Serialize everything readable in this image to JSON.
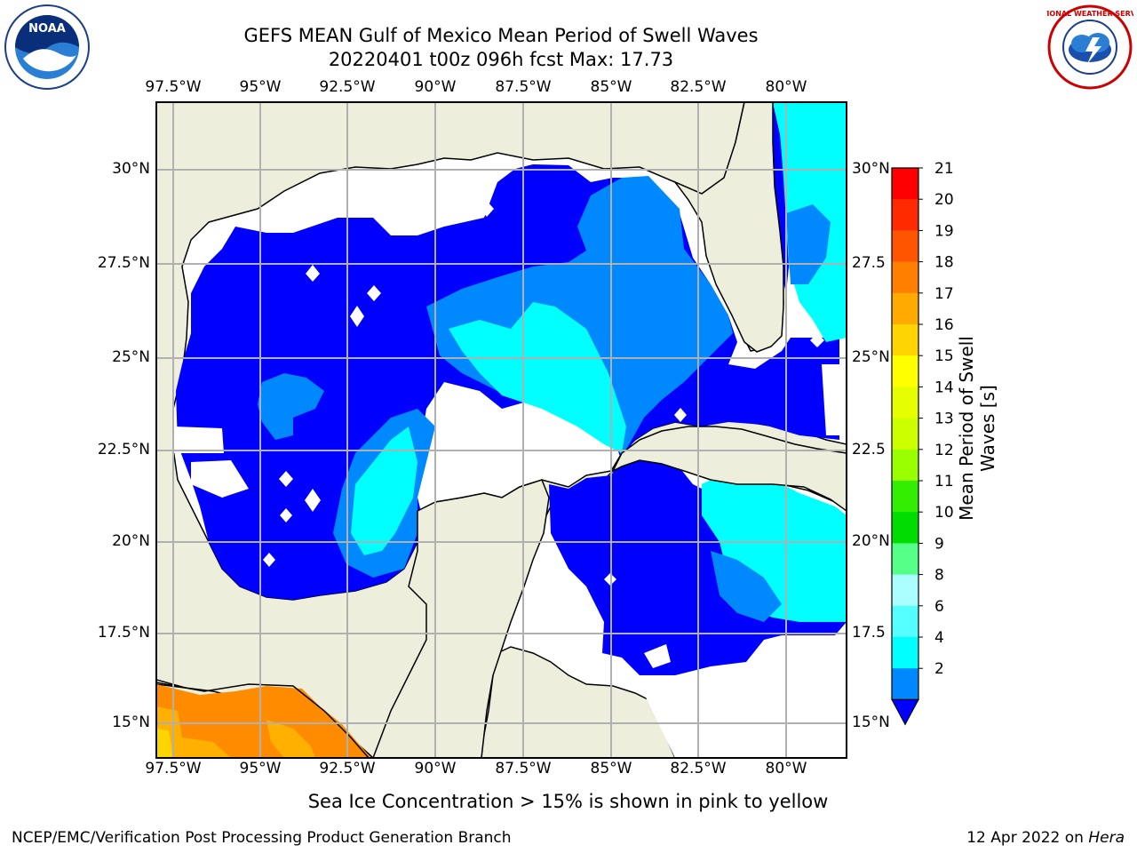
{
  "header": {
    "title_line1": "GEFS MEAN Gulf of Mexico Mean Period of Swell Waves",
    "title_line2": "20220401 t00z 096h fcst   Max: 17.73"
  },
  "logos": {
    "left": {
      "name": "NOAA",
      "ring_text": "NATIONAL OCEANIC AND ATMOSPHERIC ADMINISTRATION · U.S. DEPARTMENT OF COMMERCE"
    },
    "right": {
      "name": "NATIONAL WEATHER SERVICE"
    }
  },
  "map": {
    "lon_ticks": [
      "97.5°W",
      "95°W",
      "92.5°W",
      "90°W",
      "87.5°W",
      "85°W",
      "82.5°W",
      "80°W"
    ],
    "lat_ticks_left": [
      "30°N",
      "27.5°N",
      "25°N",
      "22.5°N",
      "20°N",
      "17.5°N",
      "15°N"
    ],
    "lat_ticks_right": [
      "30°N",
      "27.5",
      "25°N",
      "22.5",
      "20°N",
      "17.5",
      "15°N"
    ],
    "colors": {
      "land": "#eeeedc",
      "ocean_missing": "#ffffff",
      "grid": "#b0b0b0"
    }
  },
  "colorbar": {
    "label": "Mean Period of Swell Waves [s]",
    "ticks": [
      "21",
      "20",
      "19",
      "18",
      "17",
      "16",
      "15",
      "14",
      "13",
      "12",
      "11",
      "10",
      "9",
      "8",
      "6",
      "4",
      "2"
    ],
    "colors": [
      "#ff0000",
      "#ff2a00",
      "#ff5500",
      "#ff8000",
      "#ffaa00",
      "#ffd400",
      "#ffff00",
      "#e6ff00",
      "#ccff00",
      "#99ff00",
      "#33ee00",
      "#00dd00",
      "#55ff88",
      "#aaffff",
      "#55ffff",
      "#00ffff",
      "#0088ff"
    ],
    "extend_color": "#0000ff"
  },
  "footer": {
    "note": "Sea Ice Concentration > 15% is shown in pink to yellow",
    "left": "NCEP/EMC/Verification Post Processing Product Generation Branch",
    "right_prefix": "12 Apr 2022 on ",
    "right_host": "Hera"
  }
}
